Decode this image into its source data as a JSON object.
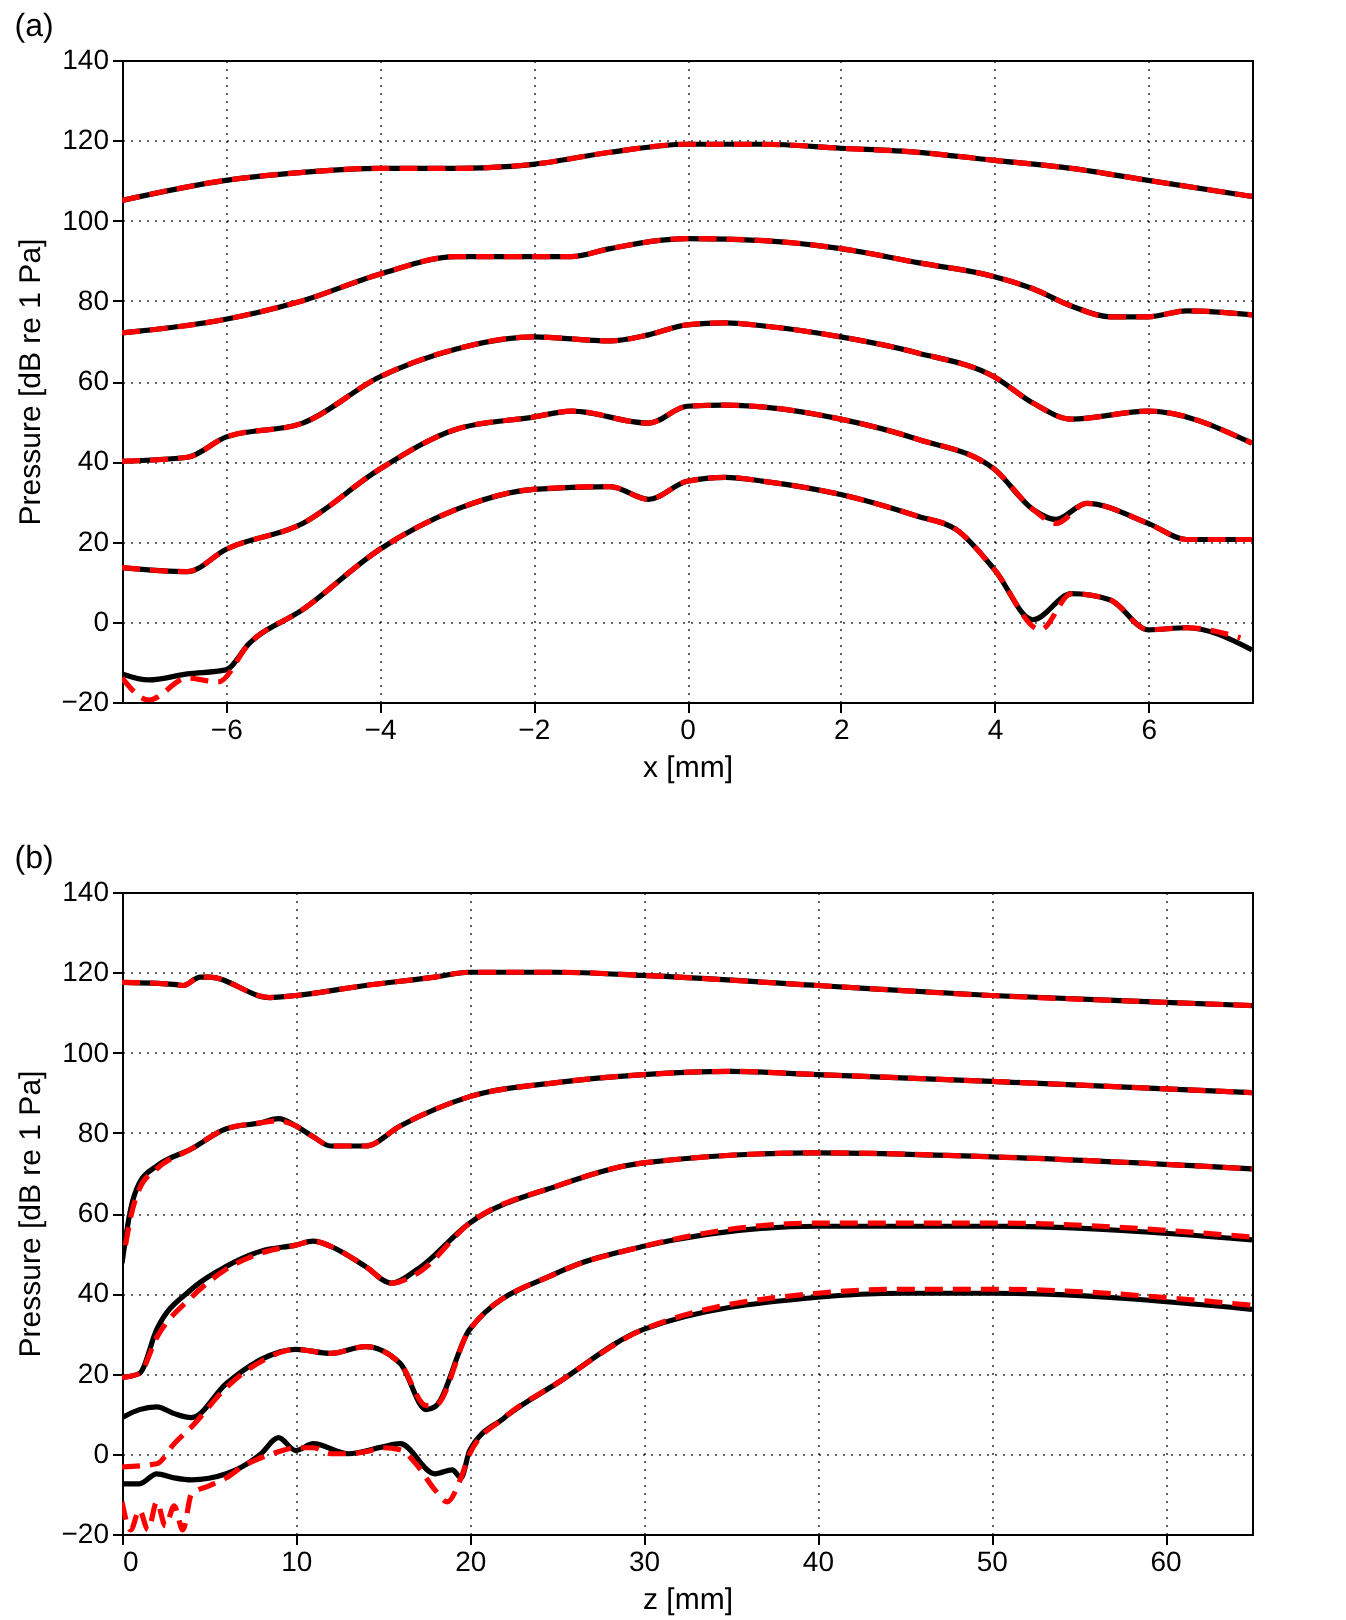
{
  "chart_data": [
    {
      "type": "line",
      "annotations": [
        "(a)"
      ],
      "xlabel": "x [mm]",
      "ylabel": "Pressure [dB re 1 Pa]",
      "xlim": [
        -7.35,
        7.35
      ],
      "ylim": [
        -20,
        140
      ],
      "xticks": [
        -6,
        -4,
        -2,
        0,
        2,
        4,
        6
      ],
      "yticks": [
        -20,
        0,
        20,
        40,
        60,
        80,
        100,
        120,
        140
      ],
      "grid": true,
      "series": [
        {
          "color": "#000000",
          "line_style": "solid",
          "x": [
            -7.35,
            -6,
            -5,
            -4,
            -3,
            -2,
            -1,
            0,
            1,
            2,
            3,
            4,
            5,
            6,
            7.35
          ],
          "values": [
            105,
            110,
            112,
            113,
            113,
            114,
            117,
            119,
            119,
            118,
            117,
            115,
            113,
            110,
            106
          ]
        },
        {
          "color": "#ff0000",
          "line_style": "dashed",
          "x": [
            -7.35,
            -6,
            -5,
            -4,
            -3,
            -2,
            -1,
            0,
            1,
            2,
            3,
            4,
            5,
            6,
            7.35
          ],
          "values": [
            105,
            110,
            112,
            113,
            113,
            114,
            117,
            119,
            119,
            118,
            117,
            115,
            113,
            110,
            106
          ]
        },
        {
          "color": "#000000",
          "line_style": "solid",
          "x": [
            -7.35,
            -6,
            -5,
            -4,
            -3,
            -2,
            -1.5,
            -1,
            0,
            1,
            2,
            3,
            4,
            4.5,
            5,
            5.5,
            6,
            6.5,
            7.35
          ],
          "values": [
            72,
            75.4,
            80,
            86.6,
            91,
            91,
            91,
            93,
            95.5,
            95,
            93,
            89.5,
            86,
            83,
            78.7,
            76,
            76,
            77.5,
            76.5
          ]
        },
        {
          "color": "#ff0000",
          "line_style": "dashed",
          "x": [
            -7.35,
            -6,
            -5,
            -4,
            -3,
            -2,
            -1.5,
            -1,
            0,
            1,
            2,
            3,
            4,
            4.5,
            5,
            5.5,
            6,
            6.5,
            7.35
          ],
          "values": [
            72,
            75.4,
            80,
            86.6,
            91,
            91,
            91,
            93,
            95.5,
            95,
            93,
            89.5,
            86,
            83,
            78.7,
            76,
            76,
            77.5,
            76.5
          ]
        },
        {
          "color": "#000000",
          "line_style": "solid",
          "x": [
            -7.35,
            -6.5,
            -6,
            -5,
            -4,
            -3,
            -2,
            -1,
            -0.5,
            0,
            0.5,
            1,
            2,
            3,
            4,
            4.5,
            5,
            6,
            7.35
          ],
          "values": [
            40,
            41,
            46,
            49.5,
            61,
            68,
            71,
            70,
            71.5,
            74,
            74.5,
            73.7,
            71,
            67,
            61,
            54.5,
            50.5,
            52.5,
            44.5
          ]
        },
        {
          "color": "#ff0000",
          "line_style": "dashed",
          "x": [
            -7.35,
            -6.5,
            -6,
            -5,
            -4,
            -3,
            -2,
            -1,
            -0.5,
            0,
            0.5,
            1,
            2,
            3,
            4,
            4.5,
            5,
            6,
            7.35
          ],
          "values": [
            40,
            41,
            46,
            49.5,
            61,
            68,
            71,
            70,
            71.5,
            74,
            74.5,
            73.7,
            71,
            67,
            61,
            54.5,
            50.5,
            52.5,
            44.5
          ]
        },
        {
          "color": "#000000",
          "line_style": "solid",
          "x": [
            -7.35,
            -6.5,
            -6,
            -5,
            -4,
            -3,
            -2,
            -1.5,
            -0.5,
            0,
            0.5,
            1,
            2,
            3,
            4,
            4.5,
            4.8,
            5.2,
            6,
            6.5,
            7.35
          ],
          "values": [
            13.5,
            12.5,
            18,
            24.5,
            38,
            48,
            51,
            52.5,
            49.5,
            53.7,
            54,
            53.5,
            50.5,
            45.5,
            38,
            28,
            25.5,
            29.5,
            24.5,
            20.5,
            20.5
          ]
        },
        {
          "color": "#ff0000",
          "line_style": "dashed",
          "x": [
            -7.35,
            -6.5,
            -6,
            -5,
            -4,
            -3,
            -2,
            -1.5,
            -0.5,
            0,
            0.5,
            1,
            2,
            3,
            4,
            4.5,
            4.8,
            5.2,
            6,
            6.5,
            7.35
          ],
          "values": [
            13.5,
            12.5,
            18,
            24.5,
            38,
            48,
            51,
            52.5,
            49.5,
            53.7,
            54,
            53.5,
            50.5,
            45.5,
            38,
            28,
            24.5,
            29.5,
            24.5,
            20.5,
            20.5
          ]
        },
        {
          "color": "#000000",
          "line_style": "solid",
          "x": [
            -7.35,
            -7,
            -6.5,
            -6,
            -5.7,
            -5,
            -4,
            -3,
            -2,
            -1,
            -0.5,
            0,
            0.5,
            1,
            2,
            3,
            3.5,
            4,
            4.5,
            5,
            5.5,
            6,
            6.5,
            7.35
          ],
          "values": [
            -13,
            -14.5,
            -13,
            -12,
            -5.5,
            3,
            18,
            28,
            33,
            33.7,
            30.5,
            35,
            36,
            35,
            31.7,
            26.3,
            23,
            13,
            0.5,
            7,
            5.5,
            -2,
            -1.5,
            -7
          ]
        },
        {
          "color": "#ff0000",
          "line_style": "dashed",
          "x": [
            -7.35,
            -7,
            -6.5,
            -6.1,
            -5.7,
            -5,
            -4,
            -3,
            -2,
            -1,
            -0.5,
            0,
            0.5,
            1,
            2,
            3,
            3.5,
            4,
            4.6,
            5,
            5.5,
            6,
            6.5,
            7.2
          ],
          "values": [
            -14,
            -19.5,
            -14,
            -15,
            -5.5,
            3,
            18,
            28,
            33,
            33.7,
            30.5,
            35,
            36,
            35,
            31.7,
            26.3,
            23,
            13,
            -2,
            7,
            5.5,
            -2,
            -1.5,
            -4
          ]
        }
      ]
    },
    {
      "type": "line",
      "annotations": [
        "(b)"
      ],
      "xlabel": "z [mm]",
      "ylabel": "Pressure [dB re 1 Pa]",
      "xlim": [
        0,
        65
      ],
      "ylim": [
        -20,
        140
      ],
      "xticks": [
        0,
        10,
        20,
        30,
        40,
        50,
        60
      ],
      "yticks": [
        -20,
        0,
        20,
        40,
        60,
        80,
        100,
        120,
        140
      ],
      "grid": true,
      "series": [
        {
          "color": "#000000",
          "line_style": "solid",
          "x": [
            0,
            3,
            3.5,
            4.5,
            5,
            8.5,
            10,
            14,
            18,
            20,
            25,
            30,
            40,
            50,
            60,
            65
          ],
          "values": [
            117.5,
            117,
            116.7,
            118.8,
            118.8,
            113.7,
            114.2,
            116.7,
            118.8,
            120,
            120,
            119.2,
            116.7,
            114.2,
            112.5,
            111.7
          ]
        },
        {
          "color": "#ff0000",
          "line_style": "dashed",
          "x": [
            0,
            3,
            3.5,
            4.5,
            5,
            8.5,
            10,
            14,
            18,
            20,
            25,
            30,
            40,
            50,
            60,
            65
          ],
          "values": [
            117.5,
            117,
            116.7,
            118.8,
            118.8,
            113.7,
            114.2,
            116.7,
            118.8,
            120,
            120,
            119.2,
            116.7,
            114.2,
            112.5,
            111.7
          ]
        },
        {
          "color": "#000000",
          "line_style": "solid",
          "x": [
            0,
            0.5,
            1,
            2,
            4,
            6,
            8,
            9,
            10,
            11,
            12,
            14,
            16,
            20,
            25,
            30,
            35,
            40,
            50,
            65
          ],
          "values": [
            47.5,
            61,
            67.5,
            71.7,
            76,
            81,
            82.5,
            83.5,
            81.7,
            79,
            76.7,
            76.7,
            81.7,
            89,
            92.5,
            94.5,
            95.3,
            94.5,
            92.8,
            90
          ]
        },
        {
          "color": "#ff0000",
          "line_style": "dashed",
          "x": [
            0.2,
            0.5,
            1,
            2,
            4,
            6,
            8,
            9,
            10,
            11,
            12,
            14,
            16,
            20,
            25,
            30,
            35,
            40,
            50,
            65
          ],
          "values": [
            52,
            59,
            66,
            71,
            76,
            81,
            82.5,
            83,
            81.7,
            79,
            76.7,
            76.7,
            81.7,
            89,
            92.5,
            94.5,
            95.3,
            94.5,
            92.8,
            90
          ]
        },
        {
          "color": "#000000",
          "line_style": "solid",
          "x": [
            0,
            1,
            2,
            4,
            6,
            8,
            10,
            11,
            12,
            14,
            15.5,
            17,
            20,
            25,
            30,
            40,
            50,
            65
          ],
          "values": [
            19,
            20,
            31,
            41,
            46.7,
            50.5,
            52,
            53,
            51.7,
            46.7,
            42.5,
            46,
            57.5,
            66.7,
            72.5,
            75,
            74,
            71
          ]
        },
        {
          "color": "#ff0000",
          "line_style": "dashed",
          "x": [
            0,
            1,
            2,
            4,
            6,
            8,
            10,
            11,
            12,
            14,
            15.5,
            17,
            20,
            25,
            30,
            40,
            50,
            65
          ],
          "values": [
            19,
            20,
            29,
            39,
            46,
            50,
            52,
            53,
            51.7,
            46.7,
            42.5,
            45,
            57.5,
            66.7,
            72.5,
            75,
            74,
            71
          ]
        },
        {
          "color": "#000000",
          "line_style": "solid",
          "x": [
            0,
            1,
            2,
            3,
            4,
            6,
            8,
            10,
            12,
            14,
            16,
            17.5,
            18,
            20,
            25,
            30,
            40,
            50,
            65
          ],
          "values": [
            9,
            11,
            11.7,
            10,
            9,
            17.5,
            23.5,
            26,
            25,
            26.7,
            22.5,
            11,
            11.7,
            31,
            45,
            51.7,
            56.7,
            56.7,
            53.3
          ]
        },
        {
          "color": "#ff0000",
          "line_style": "dashed",
          "x": [
            0,
            2,
            3,
            4,
            6,
            8,
            10,
            12,
            14,
            16,
            17.5,
            18,
            20,
            25,
            30,
            40,
            50,
            65
          ],
          "values": [
            -3.3,
            -2.5,
            2.5,
            6.7,
            16.5,
            23,
            26,
            25,
            26.7,
            22.5,
            12,
            12,
            31,
            45,
            51.7,
            57.5,
            57.5,
            54
          ]
        },
        {
          "color": "#000000",
          "line_style": "solid",
          "x": [
            0,
            1,
            2,
            3,
            4,
            6,
            8,
            9,
            10,
            11,
            13,
            15,
            16,
            18,
            19,
            19.5,
            20,
            22,
            25,
            30,
            40,
            45,
            50,
            65
          ],
          "values": [
            -7.5,
            -7.5,
            -5,
            -6,
            -6.5,
            -5,
            0,
            4,
            0.8,
            2.5,
            0,
            1.7,
            2.5,
            -5,
            -4,
            -6,
            0.8,
            9,
            17.5,
            31,
            39,
            40,
            40,
            36
          ]
        },
        {
          "color": "#ff0000",
          "line_style": "dashed",
          "x": [
            0,
            0.5,
            1,
            1.5,
            2,
            2.5,
            3,
            3.5,
            4,
            5,
            6,
            7,
            8,
            9,
            10,
            11,
            12,
            13,
            14,
            15,
            16,
            17,
            18,
            18.7,
            19.5,
            20,
            22,
            25,
            30,
            40,
            45,
            50,
            65
          ],
          "values": [
            -12,
            -19,
            -14,
            -19,
            -12,
            -18,
            -13,
            -19,
            -10,
            -8,
            -6,
            -3,
            -1,
            0.5,
            1.5,
            1.5,
            0,
            0,
            0.5,
            1.5,
            1,
            -3,
            -9,
            -12,
            -6,
            0,
            9,
            17.5,
            31,
            40,
            41,
            41,
            37
          ]
        }
      ]
    }
  ]
}
